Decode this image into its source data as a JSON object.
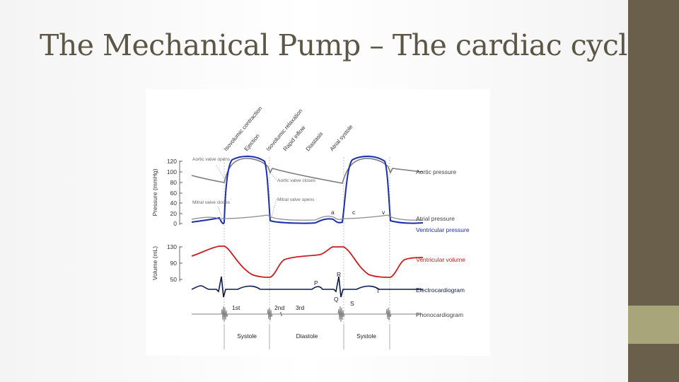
{
  "slide": {
    "title": "The Mechanical Pump – The cardiac cycle"
  },
  "colors": {
    "title": "#5b5646",
    "band": "#6a5f4a",
    "band_accent": "#a9a57a",
    "blue": "#1a2fb0",
    "red": "#cc1d1d",
    "gray": "#7c7c7c",
    "navy": "#0b1a4f"
  },
  "diagram": {
    "phases": {
      "isovolumic_contraction": "Isovolumic contraction",
      "ejection": "Ejection",
      "isovolumic_relaxation": "Isovolumic relaxation",
      "rapid_inflow": "Rapid inflow",
      "diastasis": "Diastasis",
      "atrial_systole": "Atrial systole"
    },
    "valve_labels": {
      "aortic_opens": "Aortic valve opens",
      "aortic_closes": "Aortic valve closes",
      "mitral_closes": "Mitral valve closes",
      "mitral_opens": "Mitral valve opens"
    },
    "pressure_axis": {
      "label": "Pressure (mmHg)",
      "ticks": [
        "120",
        "100",
        "80",
        "60",
        "40",
        "20",
        "0"
      ]
    },
    "volume_axis": {
      "label": "Volume (mL)",
      "ticks": [
        "130",
        "90",
        "50"
      ]
    },
    "wave_labels": {
      "a": "a",
      "c": "c",
      "v": "v"
    },
    "ecg_labels": {
      "p": "P",
      "q": "Q",
      "r": "R",
      "s": "S",
      "t": "T"
    },
    "heart_sounds": {
      "first": "1st",
      "second": "2nd",
      "third": "3rd"
    },
    "series_labels": {
      "aortic_pressure": "Aortic pressure",
      "atrial_pressure": "Atrial pressure",
      "ventricular_pressure": "Ventricular pressure",
      "ventricular_volume": "Ventricular volume",
      "electrocardiogram": "Electrocardiogram",
      "phonocardiogram": "Phonocardiogram"
    },
    "periods": {
      "systole_1": "Systole",
      "diastole": "Diastole",
      "systole_2": "Systole"
    }
  }
}
